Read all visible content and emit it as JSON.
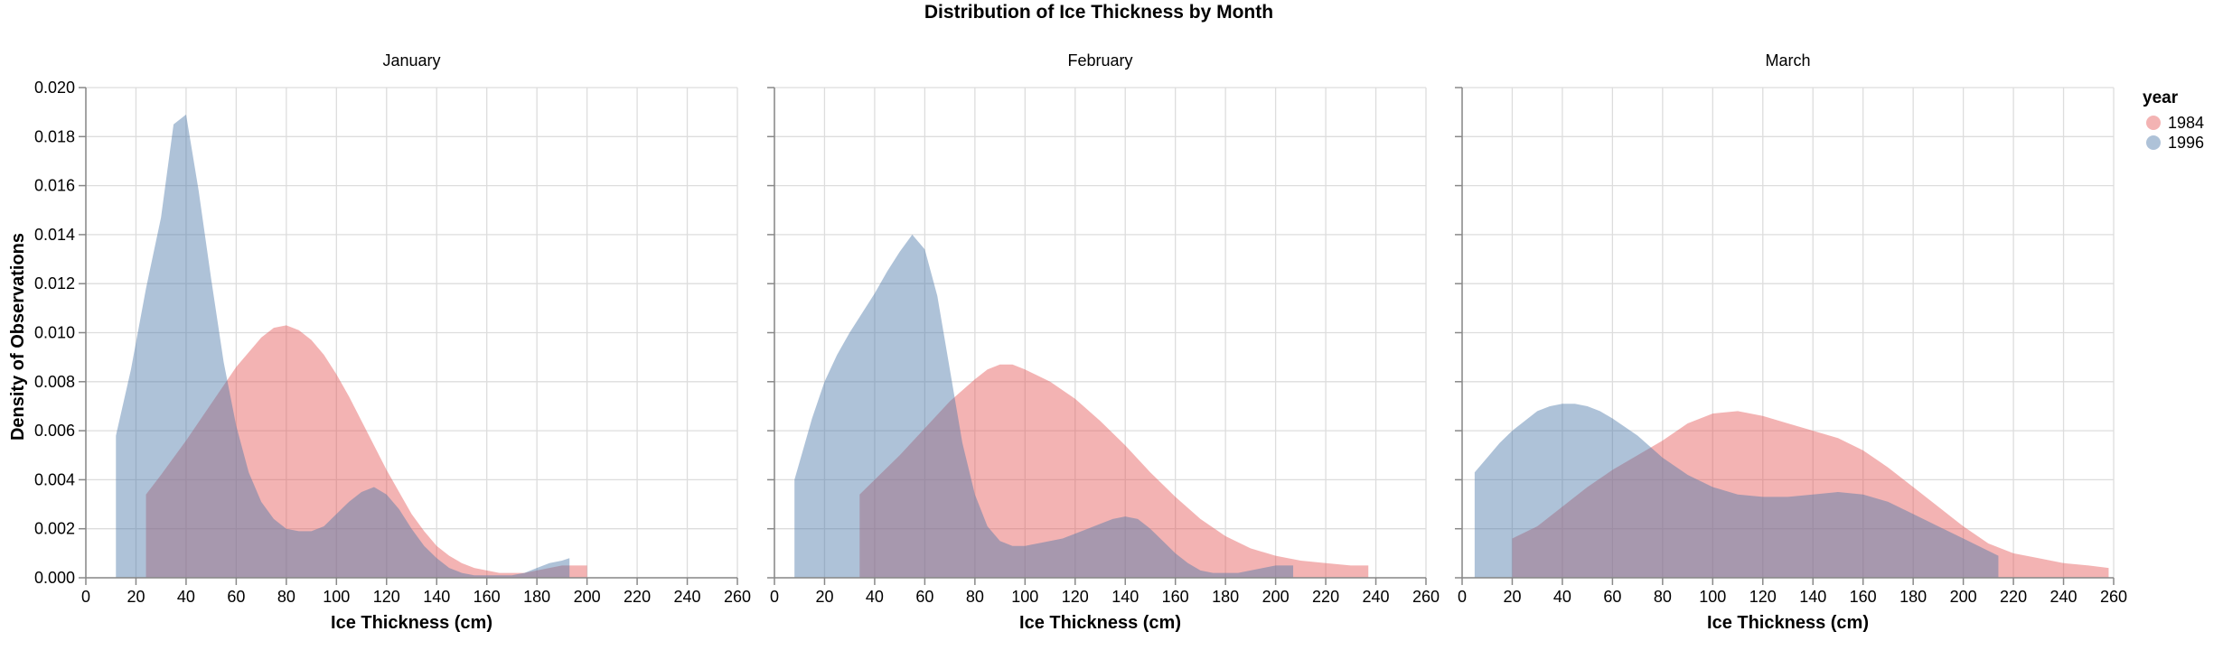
{
  "chart_data": {
    "type": "area",
    "title": "Distribution of Ice Thickness by Month",
    "xlabel": "Ice Thickness (cm)",
    "ylabel": "Density of Observations",
    "xlim": [
      0,
      260
    ],
    "ylim": [
      0,
      0.02
    ],
    "x_ticks": [
      0,
      20,
      40,
      60,
      80,
      100,
      120,
      140,
      160,
      180,
      200,
      220,
      240,
      260
    ],
    "y_ticks": [
      0,
      0.002,
      0.004,
      0.006,
      0.008,
      0.01,
      0.012,
      0.014,
      0.016,
      0.018,
      0.02
    ],
    "y_tick_labels": [
      "0.000",
      "0.002",
      "0.004",
      "0.006",
      "0.008",
      "0.010",
      "0.012",
      "0.014",
      "0.016",
      "0.018",
      "0.020"
    ],
    "grid": true,
    "legend": {
      "title": "year",
      "placement": "right",
      "entries": [
        {
          "label": "1984",
          "color": "#e45756"
        },
        {
          "label": "1996",
          "color": "#4c78a8"
        }
      ]
    },
    "colors": {
      "1984": "#e45756",
      "1996": "#4c78a8",
      "opacity": 0.45
    },
    "facets": [
      {
        "title": "January",
        "series": [
          {
            "name": "1984",
            "x": [
              24,
              30,
              40,
              50,
              60,
              70,
              75,
              80,
              85,
              90,
              95,
              100,
              105,
              110,
              115,
              120,
              125,
              130,
              135,
              140,
              145,
              150,
              155,
              160,
              165,
              170,
              175,
              180,
              185,
              190,
              195,
              200
            ],
            "values": [
              0.0034,
              0.0042,
              0.0056,
              0.0071,
              0.0086,
              0.0098,
              0.0102,
              0.0103,
              0.0101,
              0.0097,
              0.0091,
              0.0083,
              0.0074,
              0.0064,
              0.0054,
              0.0044,
              0.0035,
              0.0026,
              0.0019,
              0.0013,
              0.0009,
              0.0006,
              0.0004,
              0.0003,
              0.0002,
              0.0002,
              0.0002,
              0.0003,
              0.0004,
              0.0005,
              0.0005,
              0.0005
            ]
          },
          {
            "name": "1996",
            "x": [
              12,
              18,
              24,
              30,
              35,
              40,
              45,
              50,
              55,
              60,
              65,
              70,
              75,
              80,
              85,
              90,
              95,
              100,
              105,
              110,
              115,
              120,
              125,
              130,
              135,
              140,
              145,
              150,
              155,
              160,
              165,
              170,
              175,
              180,
              185,
              190,
              193
            ],
            "values": [
              0.0058,
              0.0085,
              0.0118,
              0.0147,
              0.0185,
              0.0189,
              0.0158,
              0.0122,
              0.0088,
              0.0062,
              0.0043,
              0.0031,
              0.0024,
              0.002,
              0.0019,
              0.0019,
              0.0021,
              0.0026,
              0.0031,
              0.0035,
              0.0037,
              0.0034,
              0.0028,
              0.002,
              0.0013,
              0.0008,
              0.0004,
              0.0002,
              0.0001,
              0.0001,
              0.0001,
              0.0001,
              0.0002,
              0.0004,
              0.0006,
              0.0007,
              0.0008
            ]
          }
        ]
      },
      {
        "title": "February",
        "series": [
          {
            "name": "1984",
            "x": [
              34,
              40,
              50,
              60,
              70,
              80,
              85,
              90,
              95,
              100,
              110,
              120,
              130,
              140,
              150,
              160,
              170,
              180,
              190,
              200,
              210,
              220,
              230,
              237
            ],
            "values": [
              0.0034,
              0.004,
              0.005,
              0.0061,
              0.0072,
              0.0081,
              0.0085,
              0.0087,
              0.0087,
              0.0085,
              0.008,
              0.0073,
              0.0064,
              0.0054,
              0.0043,
              0.0033,
              0.0024,
              0.0017,
              0.0012,
              0.0009,
              0.0007,
              0.0006,
              0.0005,
              0.0005
            ]
          },
          {
            "name": "1996",
            "x": [
              8,
              15,
              20,
              25,
              30,
              35,
              40,
              45,
              50,
              55,
              60,
              65,
              70,
              75,
              80,
              85,
              90,
              95,
              100,
              105,
              110,
              115,
              120,
              125,
              130,
              135,
              140,
              145,
              150,
              155,
              160,
              165,
              170,
              175,
              180,
              185,
              190,
              195,
              200,
              207
            ],
            "values": [
              0.004,
              0.0065,
              0.008,
              0.0091,
              0.01,
              0.0108,
              0.0116,
              0.0125,
              0.0133,
              0.014,
              0.0134,
              0.0115,
              0.0085,
              0.0055,
              0.0034,
              0.0021,
              0.0015,
              0.0013,
              0.0013,
              0.0014,
              0.0015,
              0.0016,
              0.0018,
              0.002,
              0.0022,
              0.0024,
              0.0025,
              0.0024,
              0.002,
              0.0015,
              0.001,
              0.0006,
              0.0003,
              0.0002,
              0.0002,
              0.0002,
              0.0003,
              0.0004,
              0.0005,
              0.0005
            ]
          }
        ]
      },
      {
        "title": "March",
        "series": [
          {
            "name": "1984",
            "x": [
              20,
              30,
              40,
              50,
              60,
              70,
              80,
              90,
              100,
              110,
              120,
              130,
              140,
              150,
              160,
              170,
              180,
              190,
              200,
              210,
              220,
              230,
              240,
              250,
              258
            ],
            "values": [
              0.0016,
              0.0021,
              0.0029,
              0.0037,
              0.0044,
              0.005,
              0.0056,
              0.0063,
              0.0067,
              0.0068,
              0.0066,
              0.0063,
              0.006,
              0.0057,
              0.0052,
              0.0045,
              0.0037,
              0.0029,
              0.0021,
              0.0014,
              0.001,
              0.0008,
              0.0006,
              0.0005,
              0.0004
            ]
          },
          {
            "name": "1996",
            "x": [
              5,
              10,
              15,
              20,
              25,
              30,
              35,
              40,
              45,
              50,
              55,
              60,
              70,
              80,
              90,
              100,
              110,
              120,
              130,
              140,
              150,
              160,
              170,
              180,
              190,
              200,
              214
            ],
            "values": [
              0.0043,
              0.0049,
              0.0055,
              0.006,
              0.0064,
              0.0068,
              0.007,
              0.0071,
              0.0071,
              0.007,
              0.0068,
              0.0065,
              0.0058,
              0.0049,
              0.0042,
              0.0037,
              0.0034,
              0.0033,
              0.0033,
              0.0034,
              0.0035,
              0.0034,
              0.0031,
              0.0026,
              0.0021,
              0.0016,
              0.0009
            ]
          }
        ]
      }
    ]
  }
}
